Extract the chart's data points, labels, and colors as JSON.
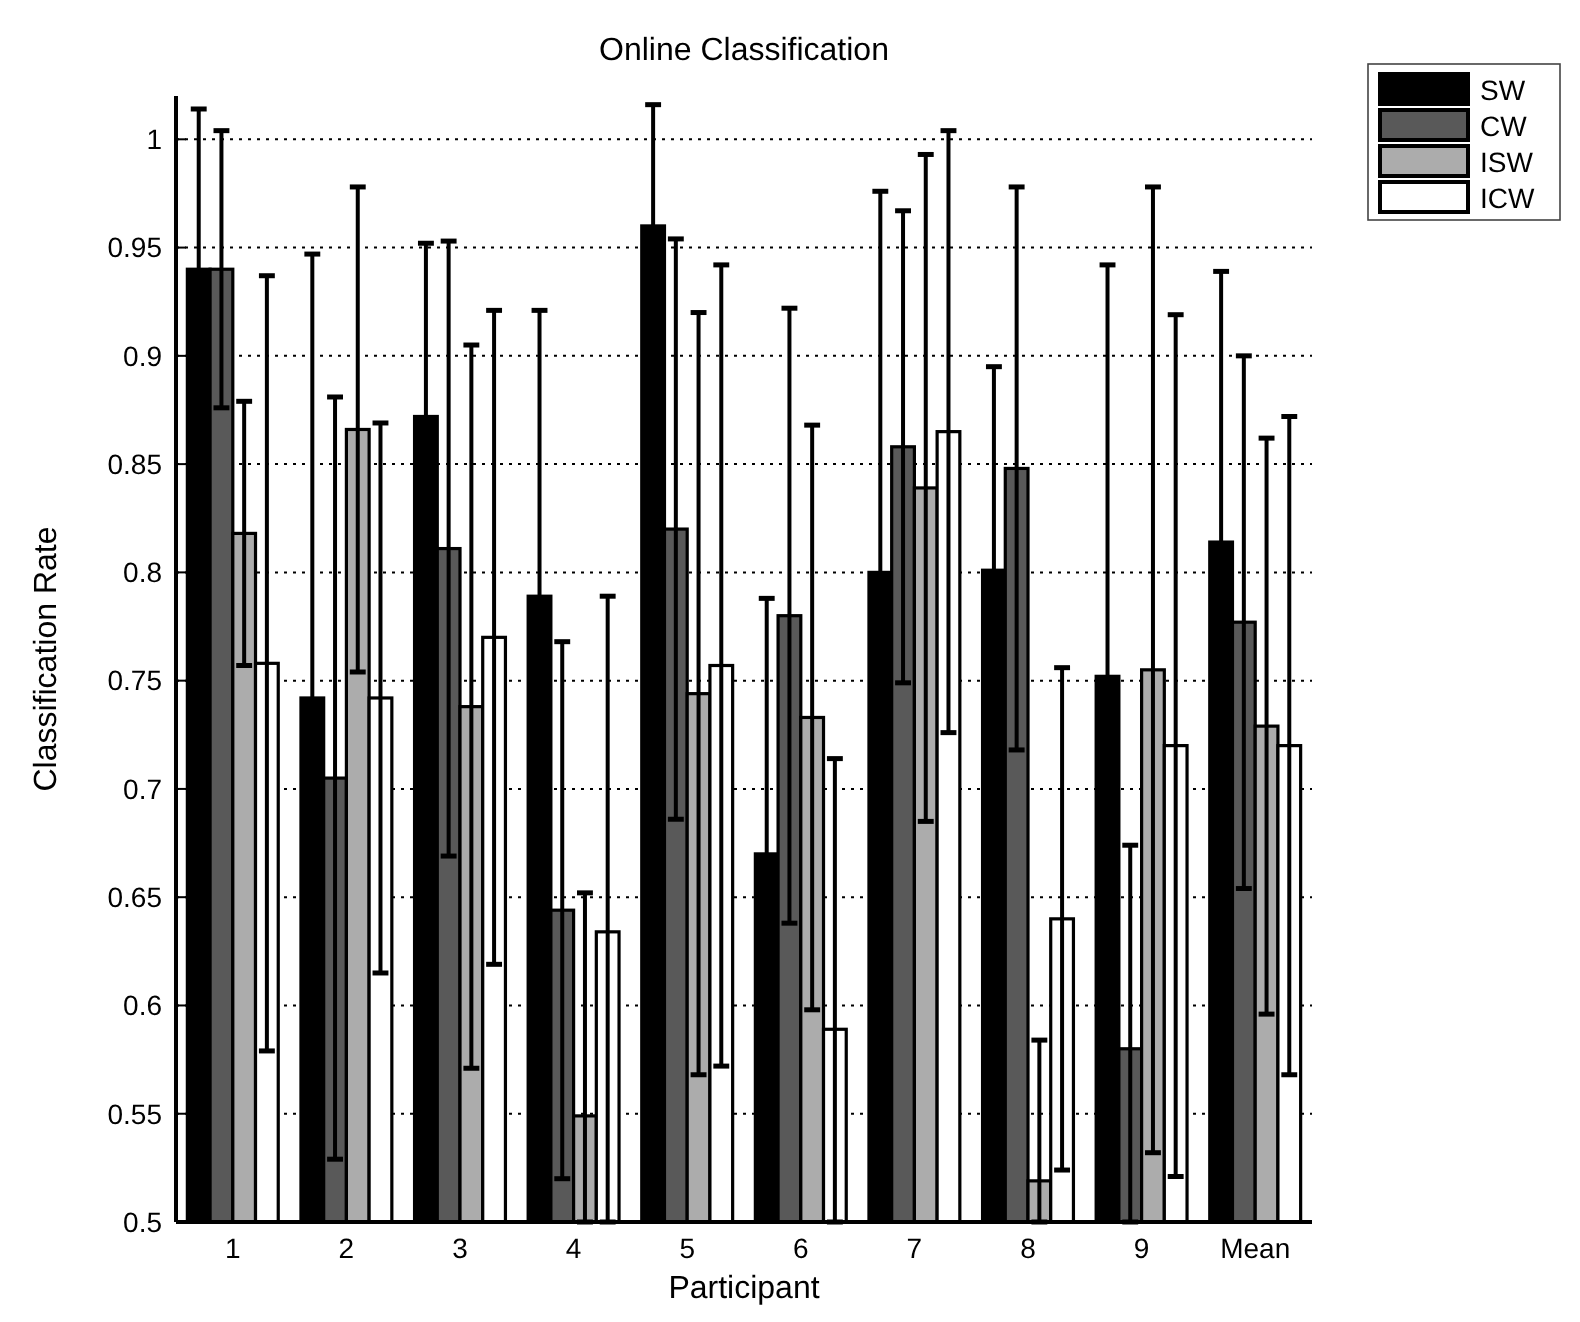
{
  "chart_data": {
    "type": "bar",
    "title": "Online Classification",
    "xlabel": "Participant",
    "ylabel": "Classification Rate",
    "categories": [
      "1",
      "2",
      "3",
      "4",
      "5",
      "6",
      "7",
      "8",
      "9",
      "Mean"
    ],
    "series": [
      {
        "name": "SW",
        "color": "#000000",
        "values": [
          0.94,
          0.742,
          0.872,
          0.789,
          0.96,
          0.67,
          0.8,
          0.801,
          0.752,
          0.814
        ],
        "errors": [
          0.074,
          0.205,
          0.08,
          0.132,
          0.056,
          0.118,
          0.176,
          0.094,
          0.19,
          0.125
        ]
      },
      {
        "name": "CW",
        "color": "#595959",
        "values": [
          0.94,
          0.705,
          0.811,
          0.644,
          0.82,
          0.78,
          0.858,
          0.848,
          0.58,
          0.777
        ],
        "errors": [
          0.064,
          0.176,
          0.142,
          0.124,
          0.134,
          0.142,
          0.109,
          0.13,
          [
            0.5,
            0.674
          ],
          0.123
        ]
      },
      {
        "name": "ISW",
        "color": "#acacac",
        "values": [
          0.818,
          0.866,
          0.738,
          0.549,
          0.744,
          0.733,
          0.839,
          0.519,
          0.755,
          0.729
        ],
        "errors": [
          0.061,
          0.112,
          0.167,
          [
            0.5,
            0.652
          ],
          0.176,
          0.135,
          0.154,
          [
            0.5,
            0.584
          ],
          0.223,
          0.133
        ]
      },
      {
        "name": "ICW",
        "color": "#ffffff",
        "values": [
          0.758,
          0.742,
          0.77,
          0.634,
          0.757,
          0.589,
          0.865,
          0.64,
          0.72,
          0.72
        ],
        "errors": [
          0.179,
          0.127,
          0.151,
          [
            0.5,
            0.789
          ],
          0.185,
          [
            0.5,
            0.714
          ],
          0.139,
          0.116,
          0.199,
          0.152
        ]
      }
    ],
    "ylim": [
      0.5,
      1.02
    ],
    "yticks": [
      0.5,
      0.55,
      0.6,
      0.65,
      0.7,
      0.75,
      0.8,
      0.85,
      0.9,
      0.95,
      1
    ],
    "grid": "y",
    "legend": "top right"
  }
}
